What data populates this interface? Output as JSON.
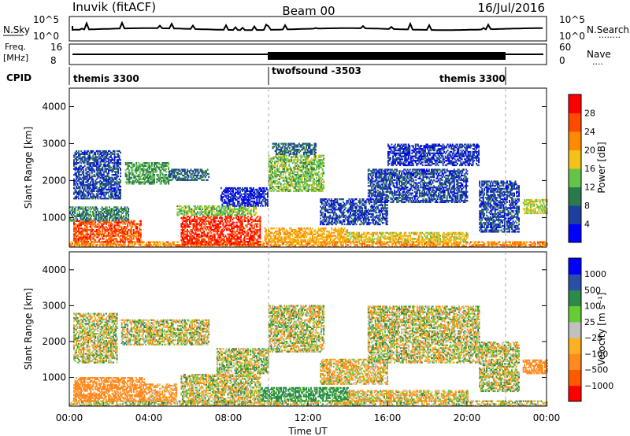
{
  "header": {
    "station": "Inuvik (fitACF)",
    "beam": "Beam 00",
    "date": "16/Jul/2016"
  },
  "nsky_panel": {
    "left_label": "N.Sky",
    "right_label": "N.Search",
    "right_marker": "........",
    "left_ticks": [
      "10^5",
      "10^0"
    ],
    "right_ticks": [
      "10^5",
      "10^0"
    ]
  },
  "freq_panel": {
    "left_label_1": "Freq.",
    "left_label_2": "[MHz]",
    "right_label": "Nave",
    "right_marker": "....",
    "left_ticks": [
      "16",
      "8"
    ],
    "right_ticks": [
      "60",
      "0"
    ]
  },
  "cpid": {
    "label": "CPID",
    "segments": [
      {
        "start_hour": 0,
        "end_hour": 10,
        "name": "themis 3300"
      },
      {
        "start_hour": 10,
        "end_hour": 22,
        "name": "twofsound -3503"
      },
      {
        "start_hour": 22,
        "end_hour": 24,
        "name": "themis 3300"
      }
    ],
    "labels_shown": [
      "themis 3300",
      "twofsound -3503",
      "themis 3300"
    ]
  },
  "chart_data": [
    {
      "type": "heatmap",
      "panel": "power",
      "ylabel": "Slant Range [km]",
      "xlabel": "",
      "xlim": [
        0,
        24
      ],
      "ylim": [
        200,
        4500
      ],
      "y_ticks": [
        1000,
        2000,
        3000,
        4000
      ],
      "colorbar": {
        "label": "Power [dB]",
        "ticks": [
          "28",
          "24",
          "20",
          "16",
          "12",
          "8",
          "4"
        ],
        "levels": [
          {
            "from": 0,
            "to": 4,
            "color": "#0000ff"
          },
          {
            "from": 4,
            "to": 8,
            "color": "#1e3fa0"
          },
          {
            "from": 8,
            "to": 12,
            "color": "#2b7a4c"
          },
          {
            "from": 12,
            "to": 16,
            "color": "#66c34a"
          },
          {
            "from": 16,
            "to": 20,
            "color": "#f2c21a"
          },
          {
            "from": 20,
            "to": 24,
            "color": "#ff8a00"
          },
          {
            "from": 24,
            "to": 28,
            "color": "#ff4a00"
          },
          {
            "from": 28,
            "to": 32,
            "color": "#ff0000"
          }
        ]
      },
      "regions": [
        {
          "t0": 0.0,
          "t1": 24.0,
          "r0": 200,
          "r1": 330,
          "value": 22
        },
        {
          "t0": 0.2,
          "t1": 3.6,
          "r0": 330,
          "r1": 900,
          "value": 26
        },
        {
          "t0": 0.0,
          "t1": 3.0,
          "r0": 900,
          "r1": 1300,
          "value": 10
        },
        {
          "t0": 5.6,
          "t1": 9.6,
          "r0": 250,
          "r1": 1050,
          "value": 28
        },
        {
          "t0": 5.4,
          "t1": 9.4,
          "r0": 1050,
          "r1": 1300,
          "value": 14
        },
        {
          "t0": 9.8,
          "t1": 14.0,
          "r0": 330,
          "r1": 700,
          "value": 20
        },
        {
          "t0": 14.0,
          "t1": 20.0,
          "r0": 330,
          "r1": 600,
          "value": 18
        },
        {
          "t0": 2.8,
          "t1": 5.0,
          "r0": 1900,
          "r1": 2500,
          "value": 12
        },
        {
          "t0": 5.0,
          "t1": 7.0,
          "r0": 2000,
          "r1": 2300,
          "value": 8
        },
        {
          "t0": 0.2,
          "t1": 2.6,
          "r0": 1500,
          "r1": 2800,
          "value": 6
        },
        {
          "t0": 10.0,
          "t1": 12.8,
          "r0": 1700,
          "r1": 2700,
          "value": 14
        },
        {
          "t0": 10.2,
          "t1": 12.4,
          "r0": 2700,
          "r1": 3000,
          "value": 8
        },
        {
          "t0": 12.6,
          "t1": 16.0,
          "r0": 800,
          "r1": 1500,
          "value": 6
        },
        {
          "t0": 15.0,
          "t1": 20.0,
          "r0": 1400,
          "r1": 2300,
          "value": 6
        },
        {
          "t0": 16.0,
          "t1": 20.6,
          "r0": 2400,
          "r1": 3000,
          "value": 5
        },
        {
          "t0": 20.6,
          "t1": 22.6,
          "r0": 600,
          "r1": 2000,
          "value": 6
        },
        {
          "t0": 22.8,
          "t1": 24.0,
          "r0": 1100,
          "r1": 1500,
          "value": 16
        },
        {
          "t0": 7.6,
          "t1": 10.0,
          "r0": 1300,
          "r1": 1800,
          "value": 4
        }
      ]
    },
    {
      "type": "heatmap",
      "panel": "velocity",
      "ylabel": "Slant Range [km]",
      "xlabel": "Time UT",
      "xlim": [
        0,
        24
      ],
      "ylim": [
        200,
        4500
      ],
      "x_ticks": [
        "00:00",
        "04:00",
        "08:00",
        "12:00",
        "16:00",
        "20:00",
        "00:00"
      ],
      "y_ticks": [
        1000,
        2000,
        3000,
        4000
      ],
      "colorbar": {
        "label": "Velocity [m s⁻¹]",
        "ticks": [
          "1000",
          "500",
          "100",
          "25",
          "−25",
          "−100",
          "−500",
          "−1000"
        ],
        "levels": [
          {
            "from": -1500,
            "to": -1000,
            "color": "#ff0000"
          },
          {
            "from": -1000,
            "to": -500,
            "color": "#ff5a00"
          },
          {
            "from": -500,
            "to": -100,
            "color": "#ff8a1e"
          },
          {
            "from": -100,
            "to": -25,
            "color": "#ffb020"
          },
          {
            "from": -25,
            "to": 25,
            "color": "#c0c0c0"
          },
          {
            "from": 25,
            "to": 100,
            "color": "#66cc33"
          },
          {
            "from": 100,
            "to": 500,
            "color": "#2c8a4a"
          },
          {
            "from": 500,
            "to": 1000,
            "color": "#2a4fa8"
          },
          {
            "from": 1000,
            "to": 1500,
            "color": "#0000ff"
          }
        ]
      },
      "regions": [
        {
          "t0": 0.0,
          "t1": 24.0,
          "r0": 200,
          "r1": 330,
          "value": 0
        },
        {
          "t0": 0.2,
          "t1": 3.8,
          "r0": 330,
          "r1": 1000,
          "value": -300
        },
        {
          "t0": 3.8,
          "t1": 5.4,
          "r0": 350,
          "r1": 800,
          "value": -150
        },
        {
          "t0": 5.6,
          "t1": 9.6,
          "r0": 300,
          "r1": 1100,
          "value": 0
        },
        {
          "t0": 9.6,
          "t1": 14.0,
          "r0": 330,
          "r1": 700,
          "value": 200
        },
        {
          "t0": 14.0,
          "t1": 20.0,
          "r0": 330,
          "r1": 650,
          "value": -60
        },
        {
          "t0": 2.6,
          "t1": 7.0,
          "r0": 1900,
          "r1": 2600,
          "value": 0
        },
        {
          "t0": 0.2,
          "t1": 2.4,
          "r0": 1400,
          "r1": 2800,
          "value": 0
        },
        {
          "t0": 10.0,
          "t1": 12.8,
          "r0": 1700,
          "r1": 3000,
          "value": 0
        },
        {
          "t0": 12.6,
          "t1": 16.0,
          "r0": 800,
          "r1": 1500,
          "value": -60
        },
        {
          "t0": 15.0,
          "t1": 20.6,
          "r0": 1400,
          "r1": 3000,
          "value": 0
        },
        {
          "t0": 20.6,
          "t1": 22.6,
          "r0": 600,
          "r1": 2000,
          "value": 0
        },
        {
          "t0": 22.8,
          "t1": 24.0,
          "r0": 1100,
          "r1": 1500,
          "value": -300
        },
        {
          "t0": 7.4,
          "t1": 10.0,
          "r0": 1100,
          "r1": 1800,
          "value": 40
        }
      ]
    }
  ]
}
